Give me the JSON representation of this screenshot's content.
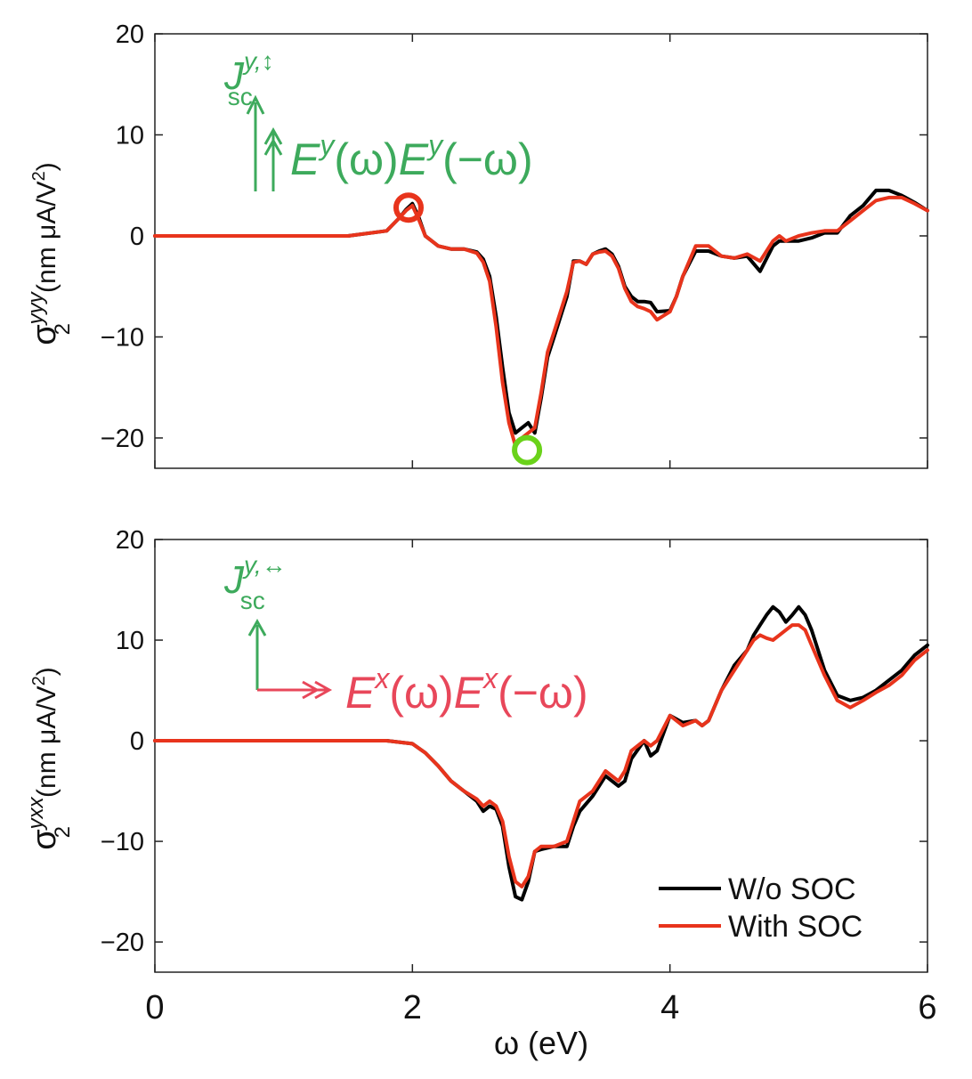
{
  "chart_data": [
    {
      "type": "line",
      "panel": "top",
      "ylabel": {
        "sym": "σ",
        "sub": "2",
        "sup": "yyy",
        "unit_pre": "(nm μA/V",
        "unit_sup": "2",
        "unit_post": ")"
      },
      "xlim": [
        0,
        6
      ],
      "ylim": [
        -23,
        20
      ],
      "yticks": [
        20,
        10,
        0,
        -10,
        -20
      ],
      "ytick_labels": [
        "20",
        "10",
        "0",
        "−10",
        "−20"
      ],
      "series": [
        {
          "name": "W/o SOC",
          "color": "#000000",
          "x": [
            0,
            0.5,
            1,
            1.5,
            1.8,
            1.9,
            1.95,
            2.0,
            2.05,
            2.1,
            2.2,
            2.3,
            2.4,
            2.5,
            2.55,
            2.6,
            2.65,
            2.7,
            2.75,
            2.8,
            2.85,
            2.9,
            2.95,
            3.0,
            3.05,
            3.1,
            3.15,
            3.2,
            3.25,
            3.3,
            3.35,
            3.4,
            3.45,
            3.5,
            3.55,
            3.6,
            3.65,
            3.7,
            3.75,
            3.8,
            3.85,
            3.9,
            4.0,
            4.05,
            4.1,
            4.2,
            4.3,
            4.4,
            4.5,
            4.6,
            4.7,
            4.8,
            4.85,
            4.9,
            5.0,
            5.1,
            5.2,
            5.3,
            5.4,
            5.5,
            5.6,
            5.7,
            5.8,
            5.9,
            6.0
          ],
          "y": [
            0,
            0,
            0,
            0,
            0.5,
            1.8,
            2.6,
            3.2,
            1.8,
            0,
            -1.0,
            -1.3,
            -1.3,
            -1.6,
            -2.3,
            -4.0,
            -8.0,
            -13.0,
            -17.5,
            -19.5,
            -19.0,
            -18.5,
            -19.5,
            -16.0,
            -12.0,
            -10.0,
            -8.0,
            -6.0,
            -2.5,
            -2.5,
            -2.8,
            -1.8,
            -1.5,
            -1.3,
            -1.8,
            -3.0,
            -5.0,
            -6.0,
            -6.5,
            -6.5,
            -6.6,
            -7.5,
            -7.4,
            -6.0,
            -4.0,
            -1.5,
            -1.5,
            -2.0,
            -2.2,
            -2.0,
            -3.5,
            -1.0,
            -0.5,
            -0.5,
            -0.5,
            -0.2,
            0.3,
            0.3,
            2.0,
            3.0,
            4.5,
            4.5,
            4.0,
            3.3,
            2.5
          ]
        },
        {
          "name": "With SOC",
          "color": "#e8341c",
          "x": [
            0,
            0.5,
            1,
            1.5,
            1.8,
            1.9,
            1.95,
            2.0,
            2.05,
            2.1,
            2.2,
            2.3,
            2.4,
            2.5,
            2.55,
            2.6,
            2.65,
            2.7,
            2.75,
            2.8,
            2.85,
            2.9,
            2.95,
            3.0,
            3.05,
            3.1,
            3.15,
            3.2,
            3.25,
            3.3,
            3.35,
            3.4,
            3.45,
            3.5,
            3.55,
            3.6,
            3.65,
            3.7,
            3.75,
            3.8,
            3.85,
            3.9,
            4.0,
            4.05,
            4.1,
            4.2,
            4.3,
            4.4,
            4.5,
            4.6,
            4.7,
            4.8,
            4.85,
            4.9,
            5.0,
            5.1,
            5.2,
            5.3,
            5.4,
            5.5,
            5.6,
            5.7,
            5.8,
            5.9,
            6.0
          ],
          "y": [
            0,
            0,
            0,
            0,
            0.5,
            1.8,
            2.5,
            3.0,
            1.6,
            0,
            -1.0,
            -1.3,
            -1.3,
            -1.7,
            -2.6,
            -4.5,
            -9.0,
            -14.5,
            -18.5,
            -20.8,
            -20.0,
            -19.5,
            -19.0,
            -15.5,
            -11.5,
            -9.5,
            -7.5,
            -5.5,
            -2.6,
            -2.5,
            -2.8,
            -1.8,
            -1.6,
            -1.5,
            -2.0,
            -3.2,
            -5.2,
            -6.5,
            -7.0,
            -7.2,
            -7.5,
            -8.3,
            -7.5,
            -6.0,
            -4.0,
            -1.0,
            -1.0,
            -2.0,
            -2.2,
            -1.8,
            -2.5,
            -0.5,
            0,
            -0.5,
            0.0,
            0.3,
            0.5,
            0.5,
            1.5,
            2.5,
            3.5,
            3.8,
            3.8,
            3.2,
            2.5
          ]
        }
      ],
      "markers": [
        {
          "x": 1.97,
          "y": 2.8,
          "color": "#e8341c"
        },
        {
          "x": 2.89,
          "y": -21.2,
          "color": "#6ad21a"
        }
      ],
      "annotation": {
        "current": "J",
        "current_sup": "y,↕",
        "current_sub": "sc",
        "field_E1": "E",
        "field_sup1": "y",
        "field_arg1": "(ω)",
        "field_E2": "E",
        "field_sup2": "y",
        "field_arg2": "(−ω)",
        "color": "#3daa5c"
      }
    },
    {
      "type": "line",
      "panel": "bottom",
      "ylabel": {
        "sym": "σ",
        "sub": "2",
        "sup": "yxx",
        "unit_pre": "(nm μA/V",
        "unit_sup": "2",
        "unit_post": ")"
      },
      "xlabel": "ω (eV)",
      "xlim": [
        0,
        6
      ],
      "ylim": [
        -23,
        20
      ],
      "xticks": [
        0,
        2,
        4,
        6
      ],
      "xtick_labels": [
        "0",
        "2",
        "4",
        "6"
      ],
      "yticks": [
        20,
        10,
        0,
        -10,
        -20
      ],
      "ytick_labels": [
        "20",
        "10",
        "0",
        "−10",
        "−20"
      ],
      "series": [
        {
          "name": "W/o SOC",
          "color": "#000000",
          "x": [
            0,
            0.5,
            1,
            1.5,
            1.8,
            2.0,
            2.1,
            2.2,
            2.3,
            2.4,
            2.5,
            2.55,
            2.6,
            2.65,
            2.7,
            2.75,
            2.8,
            2.85,
            2.9,
            2.95,
            3.0,
            3.1,
            3.2,
            3.25,
            3.3,
            3.4,
            3.5,
            3.6,
            3.65,
            3.7,
            3.8,
            3.85,
            3.9,
            4.0,
            4.1,
            4.2,
            4.25,
            4.3,
            4.4,
            4.5,
            4.6,
            4.65,
            4.7,
            4.75,
            4.8,
            4.85,
            4.9,
            4.95,
            5.0,
            5.05,
            5.1,
            5.2,
            5.3,
            5.4,
            5.5,
            5.6,
            5.7,
            5.8,
            5.9,
            6.0
          ],
          "y": [
            0,
            0,
            0,
            0,
            0,
            -0.3,
            -1.2,
            -2.5,
            -4.0,
            -5.0,
            -6.0,
            -7.0,
            -6.5,
            -6.8,
            -8.5,
            -12.5,
            -15.5,
            -15.8,
            -14.0,
            -11.0,
            -10.8,
            -10.5,
            -10.5,
            -8.5,
            -7.0,
            -5.5,
            -3.5,
            -4.5,
            -4.0,
            -1.8,
            0,
            -1.5,
            -1.0,
            2.5,
            1.8,
            2.0,
            1.5,
            2.0,
            5.0,
            7.5,
            9.0,
            10.5,
            11.5,
            12.5,
            13.3,
            12.8,
            11.8,
            12.5,
            13.3,
            12.5,
            11.0,
            7.0,
            4.5,
            4.0,
            4.3,
            5.0,
            6.0,
            7.0,
            8.5,
            9.5
          ]
        },
        {
          "name": "With SOC",
          "color": "#e8341c",
          "x": [
            0,
            0.5,
            1,
            1.5,
            1.8,
            2.0,
            2.1,
            2.2,
            2.3,
            2.4,
            2.5,
            2.55,
            2.6,
            2.65,
            2.7,
            2.75,
            2.8,
            2.85,
            2.9,
            2.95,
            3.0,
            3.1,
            3.2,
            3.25,
            3.3,
            3.4,
            3.5,
            3.6,
            3.65,
            3.7,
            3.8,
            3.85,
            3.9,
            4.0,
            4.1,
            4.2,
            4.25,
            4.3,
            4.4,
            4.5,
            4.6,
            4.65,
            4.7,
            4.75,
            4.8,
            4.85,
            4.9,
            4.95,
            5.0,
            5.05,
            5.1,
            5.2,
            5.3,
            5.4,
            5.5,
            5.6,
            5.7,
            5.8,
            5.9,
            6.0
          ],
          "y": [
            0,
            0,
            0,
            0,
            0,
            -0.3,
            -1.2,
            -2.5,
            -4.0,
            -5.0,
            -5.8,
            -6.5,
            -6.0,
            -6.5,
            -8.0,
            -11.5,
            -14.0,
            -14.5,
            -13.5,
            -11.0,
            -10.5,
            -10.5,
            -10.0,
            -8.0,
            -6.0,
            -5.0,
            -3.0,
            -4.0,
            -3.0,
            -1.0,
            0,
            -0.5,
            0,
            2.5,
            1.5,
            2.0,
            1.5,
            2.0,
            5.0,
            7.0,
            9.0,
            10.0,
            10.5,
            10.2,
            10.0,
            10.5,
            11.0,
            11.5,
            11.5,
            11.0,
            9.5,
            6.5,
            4.0,
            3.3,
            4.0,
            4.8,
            5.5,
            6.5,
            8.0,
            9.0
          ]
        }
      ],
      "legend": {
        "position": "bottom-right",
        "entries": [
          "W/o SOC",
          "With SOC"
        ]
      },
      "annotation": {
        "current": "J",
        "current_sup": "y,↔",
        "current_sub": "sc",
        "current_color": "#3daa5c",
        "field_E1": "E",
        "field_sup1": "x",
        "field_arg1": "(ω)",
        "field_E2": "E",
        "field_sup2": "x",
        "field_arg2": "(−ω)",
        "color": "#e8475a"
      }
    }
  ]
}
